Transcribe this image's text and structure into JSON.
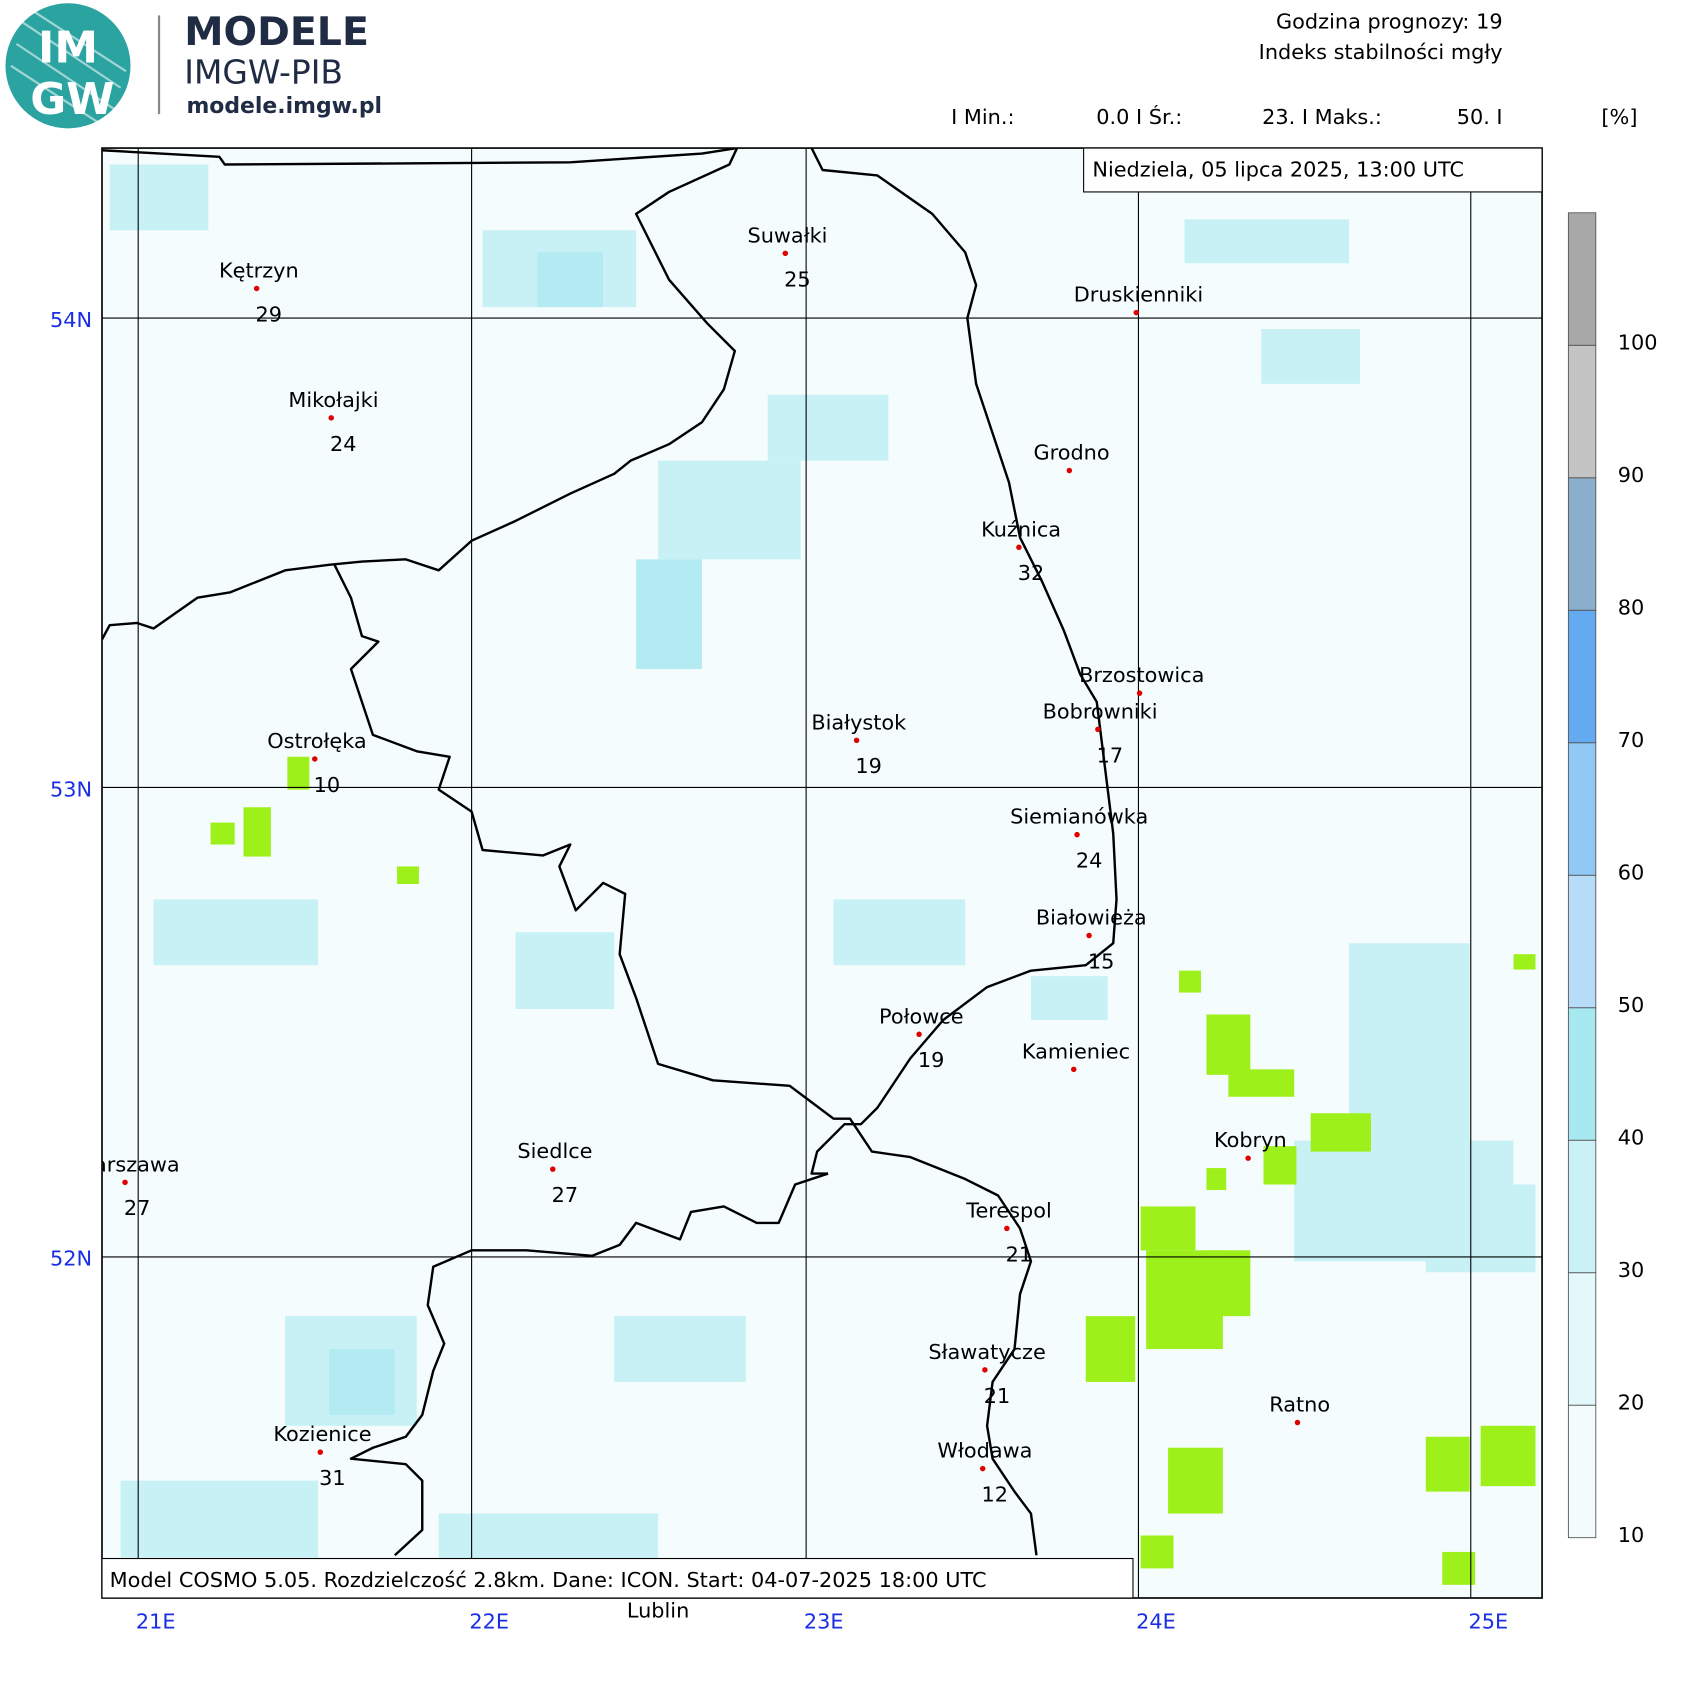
{
  "header": {
    "logo_top": "IM",
    "logo_bottom": "GW",
    "brand": "MODELE",
    "brand_sub": "IMGW-PIB",
    "website": "modele.imgw.pl",
    "forecast_hour": "Godzina prognozy: 19",
    "index_name": "Indeks stabilności mgły",
    "stats": [
      "I Min.:",
      "0.0 I Śr.:",
      "23. I Maks.:",
      "50. I"
    ],
    "unit": "[%]"
  },
  "date_label": "Niedziela, 05 lipca 2025, 13:00 UTC",
  "footer": "Model COSMO 5.05. Rozdzielczość 2.8km. Dane: ICON. Start: 04-07-2025 18:00 UTC",
  "latitudes": [
    "54N",
    "53N",
    "52N"
  ],
  "longitudes": [
    "21E",
    "22E",
    "23E",
    "24E",
    "25E"
  ],
  "cities": [
    {
      "name": "Kętrzyn",
      "value": 29
    },
    {
      "name": "Suwałki",
      "value": 25
    },
    {
      "name": "Mikołajki",
      "value": 24
    },
    {
      "name": "Druskienniki"
    },
    {
      "name": "Grodno"
    },
    {
      "name": "Kuźnica",
      "value": 32
    },
    {
      "name": "Brzostowica"
    },
    {
      "name": "Bobrowniki",
      "value": 17
    },
    {
      "name": "Białystok",
      "value": 19
    },
    {
      "name": "Ostrołęka",
      "value": 10
    },
    {
      "name": "Siemianówka",
      "value": 24
    },
    {
      "name": "Białowieża",
      "value": 15
    },
    {
      "name": "Połowce",
      "value": 19
    },
    {
      "name": "Kamieniec"
    },
    {
      "name": "Kobryn"
    },
    {
      "name": "Warszawa",
      "value": 27
    },
    {
      "name": "Siedlce",
      "value": 27
    },
    {
      "name": "Terespol",
      "value": 21
    },
    {
      "name": "Sławatycze",
      "value": 21
    },
    {
      "name": "Ratno"
    },
    {
      "name": "Kozienice",
      "value": 31
    },
    {
      "name": "Włodawa",
      "value": 12
    }
  ],
  "outside_label": "Lublin",
  "colorbar": {
    "ticks": [
      10,
      20,
      30,
      40,
      50,
      60,
      70,
      80,
      90,
      100
    ],
    "colors": [
      "#f2fcfd",
      "#e2f8fb",
      "#c9f1f6",
      "#a6e9f1",
      "#b6dcf8",
      "#90c8f6",
      "#64aaf0",
      "#8aaecb",
      "#c4c4c4",
      "#a8a8a8",
      "#8a8a8a"
    ]
  }
}
